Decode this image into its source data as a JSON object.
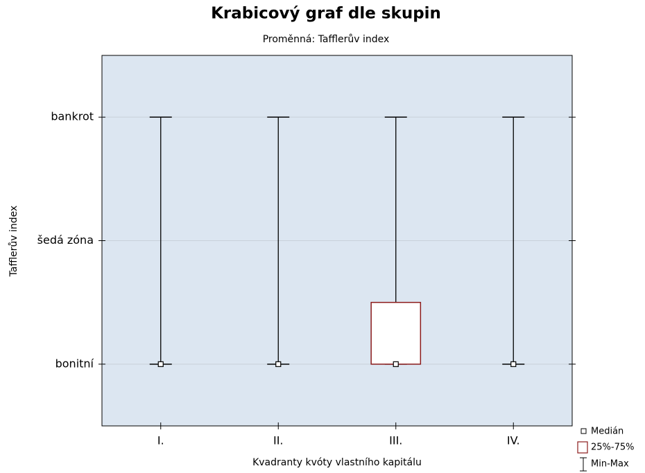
{
  "chart_data": {
    "type": "box",
    "title": "Krabicový graf dle skupin",
    "subtitle": "Proměnná: Tafflerův index",
    "x_label": "Kvadranty kvóty vlastního kapitálu",
    "y_label": "Tafflerův index",
    "categories": [
      "I.",
      "II.",
      "III.",
      "IV."
    ],
    "boxes": [
      {
        "min": 1,
        "q1": 1,
        "median": 1,
        "q3": 1,
        "max": 3
      },
      {
        "min": 1,
        "q1": 1,
        "median": 1,
        "q3": 1,
        "max": 3
      },
      {
        "min": 1,
        "q1": 1,
        "median": 1,
        "q3": 1.5,
        "max": 3
      },
      {
        "min": 1,
        "q1": 1,
        "median": 1,
        "q3": 1,
        "max": 3
      }
    ],
    "ylim": [
      0.5,
      3.5
    ],
    "yticks": [
      {
        "value": 1,
        "label": "bonitní"
      },
      {
        "value": 2,
        "label": "šedá zóna"
      },
      {
        "value": 3,
        "label": "bankrot"
      }
    ],
    "grid": true,
    "box_color": "#8b1a1a",
    "plot_background": "#dce6f1",
    "legend": {
      "median": "Medián",
      "box": "25%-75%",
      "range": "Min-Max"
    },
    "legend_position": "bottom-right"
  }
}
